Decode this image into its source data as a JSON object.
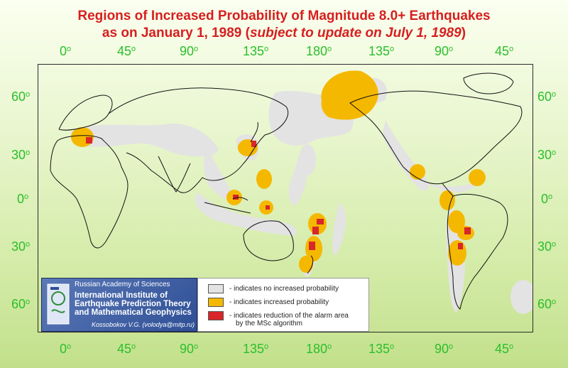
{
  "title": {
    "line1": "Regions of Increased Probability of Magnitude 8.0+ Earthquakes",
    "line2_prefix": "as on January 1, 1989 (",
    "line2_italic": "subject to update on July 1, 1989",
    "line2_suffix": ")"
  },
  "axis": {
    "longitude_top": [
      "0",
      "45",
      "90",
      "135",
      "180",
      "135",
      "90",
      "45"
    ],
    "longitude_bottom": [
      "0",
      "45",
      "90",
      "135",
      "180",
      "135",
      "90",
      "45"
    ],
    "degree_symbol": "o",
    "latitude_left": [
      "60",
      "30",
      "0",
      "30",
      "60"
    ],
    "latitude_right": [
      "60",
      "30",
      "0",
      "30",
      "60"
    ]
  },
  "colors": {
    "title": "#d61f1f",
    "degree_labels": "#2bbf2b",
    "no_increase": "#e3e3e3",
    "increased": "#f5b800",
    "reduction": "#d8262a"
  },
  "info_box": {
    "academy": "Russian Academy of Sciences",
    "institute_line1": "International Institute of",
    "institute_line2": "Earthquake Prediction Theory",
    "institute_line3": "and Mathematical Geophysics",
    "author": "Kossobokov V.G. (volodya@mitp.ru)"
  },
  "legend": [
    {
      "swatch": "no_increase",
      "label": "- indicates no increased probability"
    },
    {
      "swatch": "increased",
      "label": "- indicates increased probability"
    },
    {
      "swatch": "reduction",
      "label": "- indicates reduction of the alarm area",
      "label2": "by the MSc algorithm"
    }
  ]
}
